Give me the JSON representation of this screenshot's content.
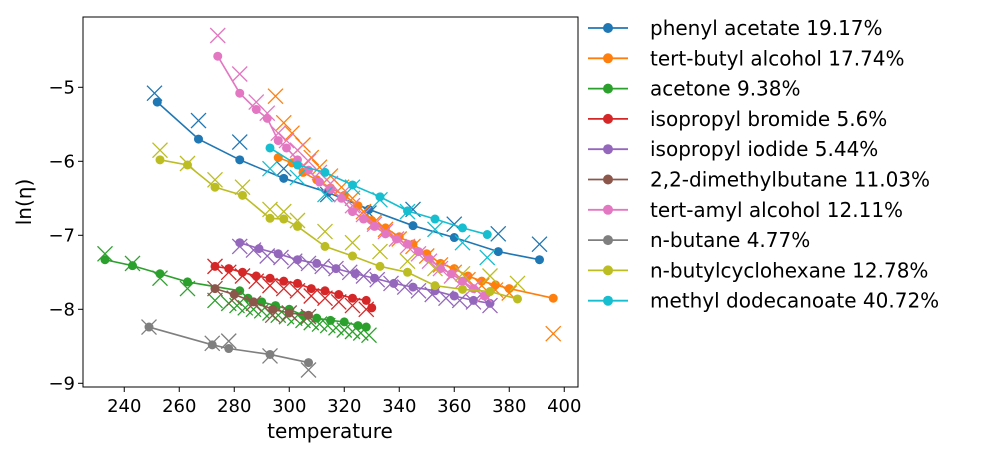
{
  "chart_data": {
    "type": "line",
    "title": "",
    "xlabel": "temperature",
    "ylabel": "ln(η)",
    "xlim": [
      225,
      405
    ],
    "ylim": [
      -9.05,
      -4.05
    ],
    "xticks": [
      "240",
      "260",
      "280",
      "300",
      "320",
      "340",
      "360",
      "380",
      "400"
    ],
    "yticks": [
      "−5",
      "−6",
      "−7",
      "−8",
      "−9"
    ],
    "grid": false,
    "legend_position": "outside-right",
    "markers": {
      "fitted": "circle-line",
      "observed": "x"
    },
    "series": [
      {
        "name": "phenyl acetate 19.17%",
        "color": "#1f77b4",
        "line": [
          [
            252,
            -5.2
          ],
          [
            267,
            -5.7
          ],
          [
            282,
            -5.98
          ],
          [
            298,
            -6.23
          ],
          [
            314,
            -6.42
          ],
          [
            329,
            -6.65
          ],
          [
            345,
            -6.87
          ],
          [
            360,
            -7.03
          ],
          [
            376,
            -7.22
          ],
          [
            391,
            -7.33
          ]
        ],
        "points": [
          [
            251,
            -5.08
          ],
          [
            267,
            -5.45
          ],
          [
            282,
            -5.74
          ],
          [
            298,
            -6.1
          ],
          [
            314,
            -6.45
          ],
          [
            329,
            -6.7
          ],
          [
            345,
            -6.65
          ],
          [
            360,
            -6.85
          ],
          [
            376,
            -6.98
          ],
          [
            391,
            -7.12
          ]
        ]
      },
      {
        "name": "tert-butyl alcohol 17.74%",
        "color": "#ff7f0e",
        "line": [
          [
            296,
            -5.95
          ],
          [
            301,
            -6.02
          ],
          [
            305,
            -6.15
          ],
          [
            310,
            -6.25
          ],
          [
            315,
            -6.36
          ],
          [
            320,
            -6.46
          ],
          [
            325,
            -6.6
          ],
          [
            330,
            -6.8
          ],
          [
            335,
            -6.9
          ],
          [
            340,
            -7.02
          ],
          [
            345,
            -7.12
          ],
          [
            350,
            -7.25
          ],
          [
            355,
            -7.38
          ],
          [
            360,
            -7.45
          ],
          [
            365,
            -7.55
          ],
          [
            370,
            -7.62
          ],
          [
            375,
            -7.67
          ],
          [
            380,
            -7.72
          ],
          [
            396,
            -7.85
          ]
        ],
        "points": [
          [
            295,
            -5.12
          ],
          [
            298,
            -5.48
          ],
          [
            301,
            -5.62
          ],
          [
            305,
            -5.78
          ],
          [
            308,
            -5.95
          ],
          [
            311,
            -6.08
          ],
          [
            315,
            -6.2
          ],
          [
            319,
            -6.35
          ],
          [
            323,
            -6.5
          ],
          [
            327,
            -6.68
          ],
          [
            331,
            -6.82
          ],
          [
            335,
            -6.92
          ],
          [
            340,
            -7.05
          ],
          [
            345,
            -7.15
          ],
          [
            350,
            -7.28
          ],
          [
            355,
            -7.4
          ],
          [
            360,
            -7.5
          ],
          [
            365,
            -7.6
          ],
          [
            370,
            -7.68
          ],
          [
            375,
            -7.74
          ],
          [
            380,
            -7.78
          ],
          [
            396,
            -8.33
          ]
        ]
      },
      {
        "name": "acetone 9.38%",
        "color": "#2ca02c",
        "line": [
          [
            233,
            -7.33
          ],
          [
            243,
            -7.41
          ],
          [
            253,
            -7.52
          ],
          [
            263,
            -7.63
          ],
          [
            282,
            -7.75
          ],
          [
            285,
            -7.85
          ],
          [
            290,
            -7.9
          ],
          [
            295,
            -7.95
          ],
          [
            300,
            -8.0
          ],
          [
            305,
            -8.08
          ],
          [
            310,
            -8.12
          ],
          [
            315,
            -8.15
          ],
          [
            320,
            -8.17
          ],
          [
            325,
            -8.22
          ],
          [
            328,
            -8.24
          ]
        ],
        "points": [
          [
            233,
            -7.25
          ],
          [
            243,
            -7.38
          ],
          [
            253,
            -7.58
          ],
          [
            263,
            -7.72
          ],
          [
            273,
            -7.88
          ],
          [
            278,
            -7.92
          ],
          [
            281,
            -7.95
          ],
          [
            284,
            -7.98
          ],
          [
            287,
            -8.0
          ],
          [
            290,
            -8.02
          ],
          [
            293,
            -8.05
          ],
          [
            296,
            -8.08
          ],
          [
            299,
            -8.1
          ],
          [
            302,
            -8.12
          ],
          [
            305,
            -8.15
          ],
          [
            308,
            -8.18
          ],
          [
            311,
            -8.2
          ],
          [
            314,
            -8.22
          ],
          [
            317,
            -8.25
          ],
          [
            320,
            -8.28
          ],
          [
            323,
            -8.3
          ],
          [
            326,
            -8.32
          ],
          [
            329,
            -8.35
          ]
        ]
      },
      {
        "name": "isopropyl bromide 5.6%",
        "color": "#d62728",
        "line": [
          [
            273,
            -7.42
          ],
          [
            278,
            -7.45
          ],
          [
            283,
            -7.5
          ],
          [
            288,
            -7.55
          ],
          [
            293,
            -7.58
          ],
          [
            298,
            -7.62
          ],
          [
            303,
            -7.65
          ],
          [
            308,
            -7.72
          ],
          [
            313,
            -7.75
          ],
          [
            318,
            -7.8
          ],
          [
            323,
            -7.85
          ],
          [
            328,
            -7.88
          ],
          [
            330,
            -7.98
          ]
        ],
        "points": [
          [
            273,
            -7.42
          ],
          [
            278,
            -7.5
          ],
          [
            283,
            -7.55
          ],
          [
            288,
            -7.62
          ],
          [
            293,
            -7.68
          ],
          [
            298,
            -7.72
          ],
          [
            303,
            -7.75
          ],
          [
            308,
            -7.82
          ],
          [
            313,
            -7.85
          ],
          [
            318,
            -7.9
          ],
          [
            323,
            -7.95
          ],
          [
            328,
            -8.0
          ]
        ]
      },
      {
        "name": "isopropyl iodide 5.44%",
        "color": "#9467bd",
        "line": [
          [
            282,
            -7.1
          ],
          [
            289,
            -7.18
          ],
          [
            296,
            -7.25
          ],
          [
            303,
            -7.33
          ],
          [
            310,
            -7.38
          ],
          [
            317,
            -7.45
          ],
          [
            324,
            -7.52
          ],
          [
            331,
            -7.58
          ],
          [
            338,
            -7.65
          ],
          [
            345,
            -7.7
          ],
          [
            353,
            -7.75
          ],
          [
            360,
            -7.82
          ],
          [
            367,
            -7.88
          ],
          [
            373,
            -7.92
          ]
        ],
        "points": [
          [
            282,
            -7.15
          ],
          [
            287,
            -7.2
          ],
          [
            292,
            -7.28
          ],
          [
            297,
            -7.3
          ],
          [
            302,
            -7.35
          ],
          [
            307,
            -7.38
          ],
          [
            312,
            -7.42
          ],
          [
            317,
            -7.45
          ],
          [
            322,
            -7.5
          ],
          [
            327,
            -7.55
          ],
          [
            332,
            -7.6
          ],
          [
            337,
            -7.65
          ],
          [
            342,
            -7.7
          ],
          [
            347,
            -7.75
          ],
          [
            352,
            -7.8
          ],
          [
            357,
            -7.85
          ],
          [
            362,
            -7.88
          ],
          [
            367,
            -7.9
          ],
          [
            373,
            -7.95
          ]
        ]
      },
      {
        "name": "2,2-dimethylbutane 11.03%",
        "color": "#8c564b",
        "line": [
          [
            273,
            -7.72
          ],
          [
            280,
            -7.8
          ],
          [
            287,
            -7.9
          ],
          [
            294,
            -8.0
          ],
          [
            300,
            -8.05
          ],
          [
            307,
            -8.08
          ]
        ],
        "points": [
          [
            273,
            -7.72
          ],
          [
            280,
            -7.85
          ],
          [
            287,
            -7.92
          ],
          [
            294,
            -8.08
          ],
          [
            300,
            -8.05
          ],
          [
            307,
            -8.1
          ]
        ]
      },
      {
        "name": "tert-amyl alcohol 12.11%",
        "color": "#e377c2",
        "line": [
          [
            274,
            -4.58
          ],
          [
            282,
            -5.08
          ],
          [
            288,
            -5.3
          ],
          [
            292,
            -5.42
          ],
          [
            296,
            -5.72
          ],
          [
            299,
            -5.82
          ],
          [
            303,
            -5.98
          ],
          [
            307,
            -6.12
          ],
          [
            311,
            -6.28
          ],
          [
            315,
            -6.38
          ],
          [
            319,
            -6.5
          ],
          [
            323,
            -6.68
          ],
          [
            327,
            -6.78
          ],
          [
            331,
            -6.88
          ],
          [
            335,
            -6.98
          ],
          [
            339,
            -7.05
          ],
          [
            343,
            -7.12
          ],
          [
            347,
            -7.22
          ],
          [
            351,
            -7.32
          ],
          [
            355,
            -7.45
          ],
          [
            359,
            -7.52
          ],
          [
            363,
            -7.62
          ],
          [
            367,
            -7.72
          ],
          [
            371,
            -7.82
          ]
        ],
        "points": [
          [
            274,
            -4.3
          ],
          [
            282,
            -4.82
          ],
          [
            288,
            -5.2
          ],
          [
            292,
            -5.35
          ],
          [
            296,
            -5.62
          ],
          [
            299,
            -5.72
          ],
          [
            303,
            -5.85
          ],
          [
            307,
            -6.0
          ],
          [
            311,
            -6.15
          ],
          [
            315,
            -6.3
          ],
          [
            319,
            -6.45
          ],
          [
            323,
            -6.6
          ],
          [
            327,
            -6.72
          ],
          [
            331,
            -6.85
          ],
          [
            335,
            -6.95
          ],
          [
            339,
            -7.05
          ],
          [
            343,
            -7.15
          ],
          [
            347,
            -7.25
          ],
          [
            351,
            -7.35
          ],
          [
            355,
            -7.45
          ],
          [
            359,
            -7.55
          ],
          [
            363,
            -7.62
          ],
          [
            367,
            -7.7
          ],
          [
            371,
            -7.8
          ]
        ]
      },
      {
        "name": "n-butane 4.77%",
        "color": "#7f7f7f",
        "line": [
          [
            249,
            -8.24
          ],
          [
            272,
            -8.48
          ],
          [
            278,
            -8.53
          ],
          [
            293,
            -8.61
          ],
          [
            307,
            -8.72
          ]
        ],
        "points": [
          [
            249,
            -8.24
          ],
          [
            272,
            -8.46
          ],
          [
            278,
            -8.43
          ],
          [
            293,
            -8.63
          ],
          [
            307,
            -8.82
          ]
        ]
      },
      {
        "name": "n-butylcyclohexane 12.78%",
        "color": "#bcbd22",
        "line": [
          [
            253,
            -5.98
          ],
          [
            263,
            -6.05
          ],
          [
            273,
            -6.35
          ],
          [
            283,
            -6.46
          ],
          [
            293,
            -6.77
          ],
          [
            298,
            -6.78
          ],
          [
            303,
            -6.88
          ],
          [
            313,
            -7.15
          ],
          [
            323,
            -7.28
          ],
          [
            333,
            -7.42
          ],
          [
            343,
            -7.5
          ],
          [
            353,
            -7.68
          ],
          [
            363,
            -7.73
          ],
          [
            373,
            -7.76
          ],
          [
            383,
            -7.86
          ]
        ],
        "points": [
          [
            253,
            -5.85
          ],
          [
            263,
            -6.03
          ],
          [
            273,
            -6.25
          ],
          [
            283,
            -6.35
          ],
          [
            293,
            -6.65
          ],
          [
            298,
            -6.68
          ],
          [
            303,
            -6.8
          ],
          [
            313,
            -6.95
          ],
          [
            323,
            -7.1
          ],
          [
            333,
            -7.22
          ],
          [
            343,
            -7.35
          ],
          [
            353,
            -7.45
          ],
          [
            363,
            -7.52
          ],
          [
            373,
            -7.55
          ],
          [
            383,
            -7.65
          ]
        ]
      },
      {
        "name": "methyl dodecanoate 40.72%",
        "color": "#17becf",
        "line": [
          [
            293,
            -5.82
          ],
          [
            303,
            -6.05
          ],
          [
            313,
            -6.15
          ],
          [
            323,
            -6.32
          ],
          [
            333,
            -6.48
          ],
          [
            343,
            -6.67
          ],
          [
            353,
            -6.78
          ],
          [
            363,
            -6.9
          ],
          [
            372,
            -6.99
          ]
        ],
        "points": [
          [
            293,
            -6.1
          ],
          [
            303,
            -6.22
          ],
          [
            313,
            -6.45
          ],
          [
            323,
            -6.35
          ],
          [
            333,
            -6.52
          ],
          [
            343,
            -6.68
          ],
          [
            353,
            -6.92
          ],
          [
            363,
            -7.1
          ],
          [
            372,
            -7.3
          ]
        ]
      }
    ]
  }
}
